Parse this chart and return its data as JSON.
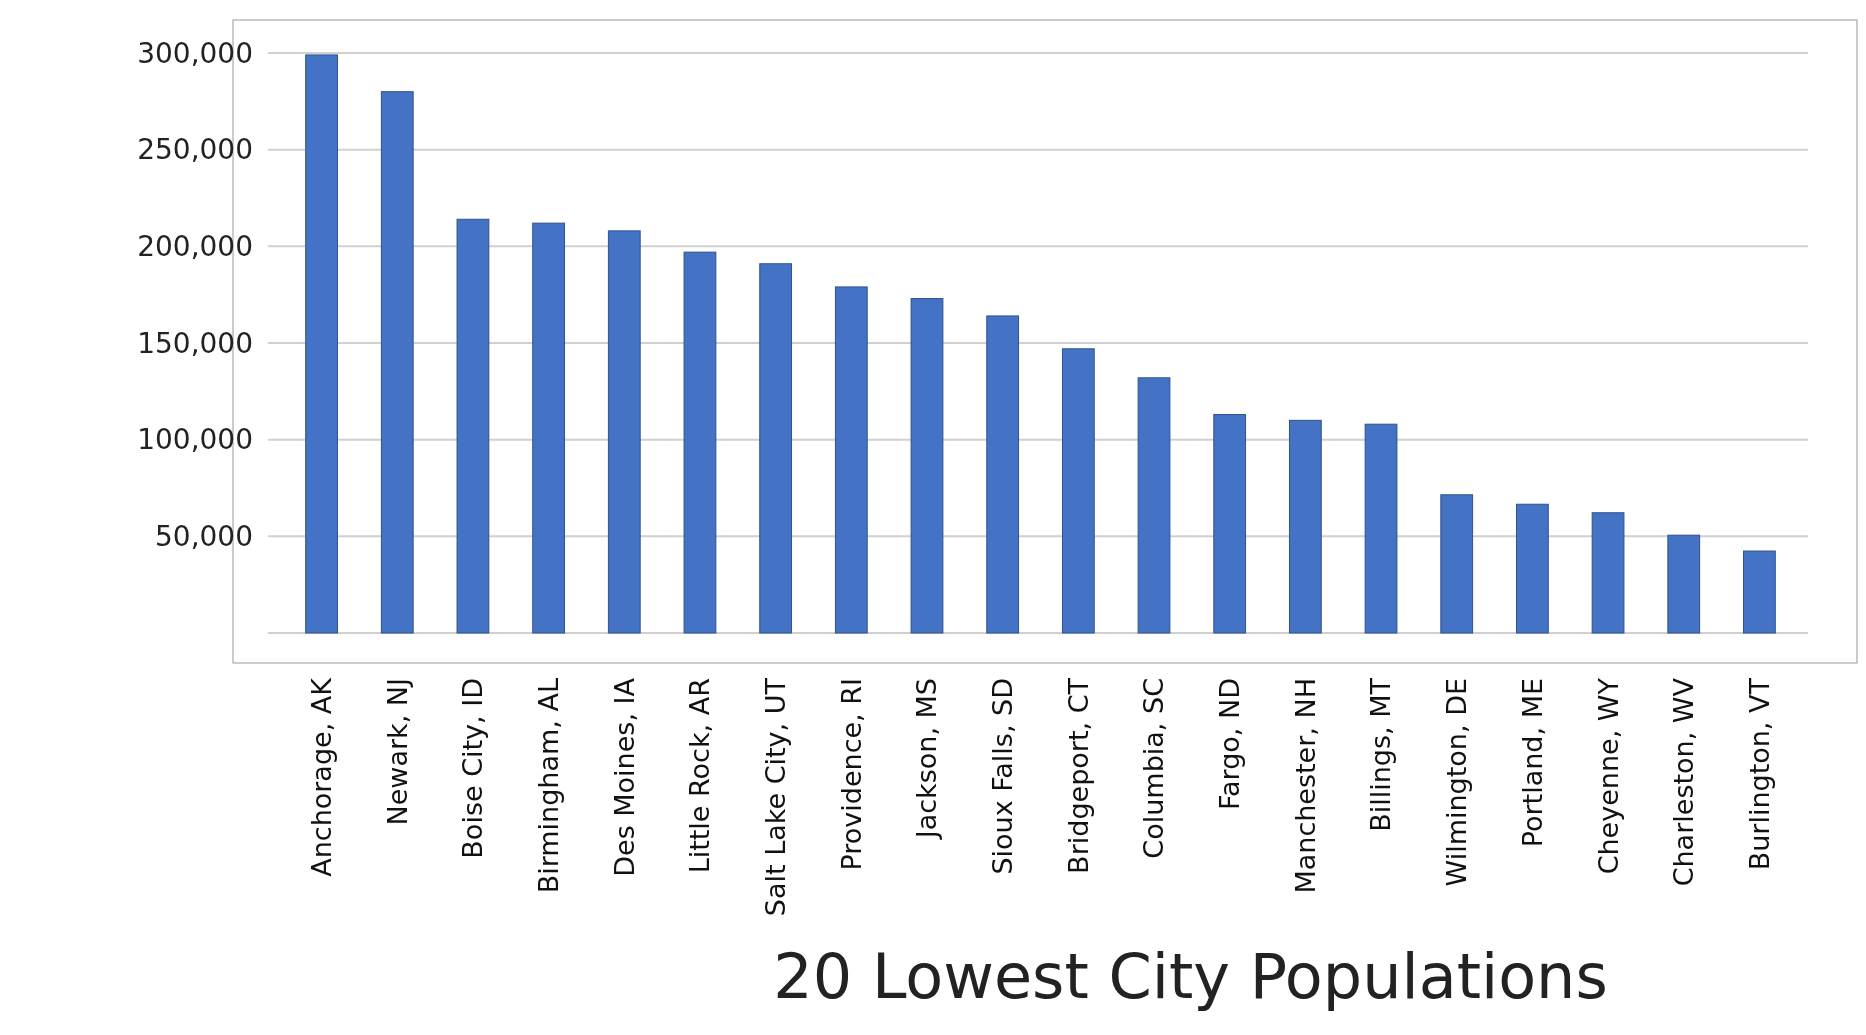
{
  "chart_data": {
    "type": "bar",
    "title": "20 Lowest City Populations",
    "categories": [
      "Anchorage, AK",
      "Newark, NJ",
      "Boise City, ID",
      "Birmingham, AL",
      "Des Moines, IA",
      "Little Rock, AR",
      "Salt Lake City, UT",
      "Providence, RI",
      "Jackson, MS",
      "Sioux Falls, SD",
      "Bridgeport, CT",
      "Columbia, SC",
      "Fargo, ND",
      "Manchester, NH",
      "Billings, MT",
      "Wilmington, DE",
      "Portland, ME",
      "Cheyenne, WY",
      "Charleston, WV",
      "Burlington, VT"
    ],
    "values": [
      299000,
      280000,
      214000,
      212000,
      208000,
      197000,
      191000,
      179000,
      173000,
      164000,
      147000,
      132000,
      113000,
      110000,
      108000,
      71500,
      66600,
      62200,
      50600,
      42400
    ],
    "color": "#4472c4",
    "ylim": [
      0,
      300000
    ],
    "yticks": [
      {
        "value": 0,
        "label": null
      },
      {
        "value": 50000,
        "label": "50,000"
      },
      {
        "value": 100000,
        "label": "100,000"
      },
      {
        "value": 150000,
        "label": "150,000"
      },
      {
        "value": 200000,
        "label": "200,000"
      },
      {
        "value": 250000,
        "label": "250,000"
      },
      {
        "value": 300000,
        "label": "300,000"
      }
    ],
    "grid": true
  }
}
